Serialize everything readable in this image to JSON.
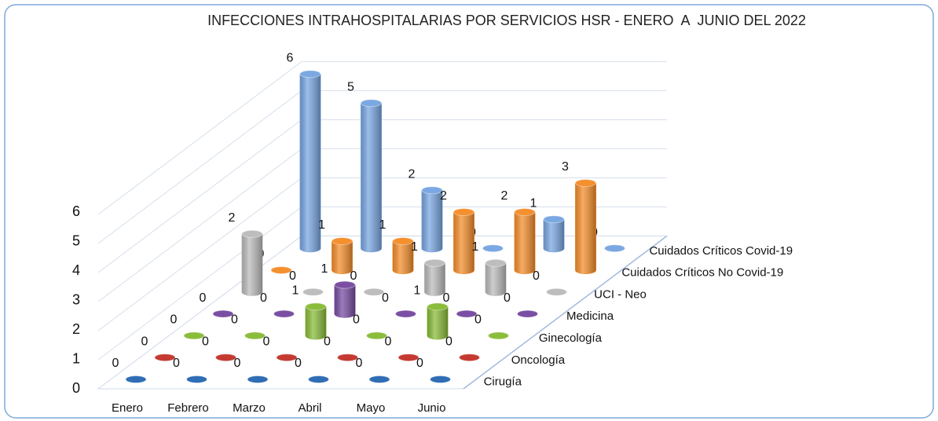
{
  "chart_data": {
    "type": "bar",
    "title": "INFECCIONES INTRAHOSPITALARIAS POR SERVICIOS HSR - ENERO  A  JUNIO DEL 2022",
    "categories": [
      "Enero",
      "Febrero",
      "Marzo",
      "Abril",
      "Mayo",
      "Junio"
    ],
    "series": [
      {
        "name": "Cirugía",
        "color": "#2f6db5",
        "values": [
          0,
          0,
          0,
          0,
          0,
          0
        ]
      },
      {
        "name": "Oncología",
        "color": "#c43a31",
        "values": [
          0,
          0,
          0,
          0,
          0,
          0
        ]
      },
      {
        "name": "Ginecología",
        "color": "#8bbd3c",
        "values": [
          0,
          0,
          1,
          0,
          1,
          0
        ]
      },
      {
        "name": "Medicina",
        "color": "#7a4fa3",
        "values": [
          0,
          0,
          1,
          0,
          0,
          0
        ]
      },
      {
        "name": "UCI - Neo",
        "color": "#bdbdbd",
        "values": [
          2,
          0,
          0,
          1,
          1,
          0
        ]
      },
      {
        "name": "Cuidados Críticos No Covid-19",
        "color": "#f5902f",
        "values": [
          0,
          1,
          1,
          2,
          2,
          3
        ]
      },
      {
        "name": "Cuidados Críticos Covid-19",
        "color": "#7ba8e2",
        "values": [
          6,
          5,
          2,
          0,
          1,
          0
        ]
      }
    ],
    "ylim": [
      0,
      6
    ],
    "yticks": [
      0,
      1,
      2,
      3,
      4,
      5,
      6
    ],
    "grid": true
  }
}
